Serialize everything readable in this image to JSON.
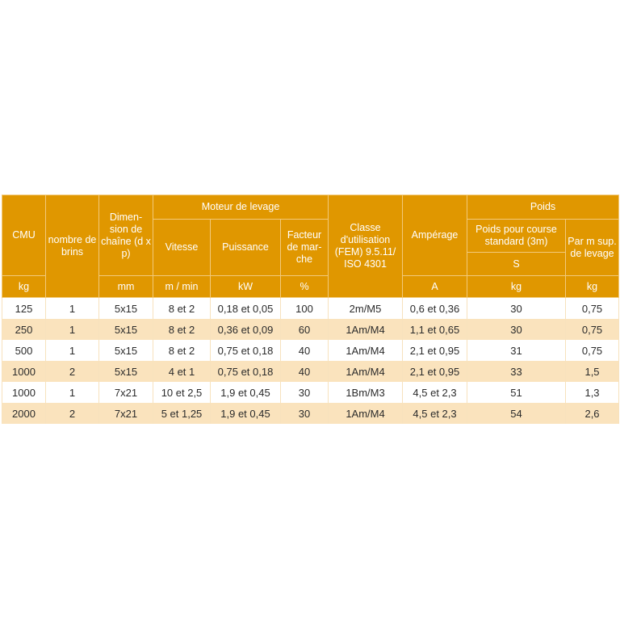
{
  "header": {
    "cmu": "CMU",
    "nombre_brins": "nombre de brins",
    "dimension": "Dimen-sion de chaîne (d x p)",
    "moteur": "Moteur de levage",
    "vitesse": "Vitesse",
    "puissance": "Puissance",
    "facteur": "Facteur de mar-che",
    "classe": "Classe d'utilisation (FEM) 9.5.11/ ISO 4301",
    "amperage": "Ampérage",
    "poids": "Poids",
    "poids_course": "Poids pour course standard (3m)",
    "poids_s": "S",
    "par_m": "Par m sup. de levage"
  },
  "units": {
    "cmu": "kg",
    "dimension": "mm",
    "vitesse": "m / min",
    "puissance": "kW",
    "facteur": "%",
    "amperage": "A",
    "poids_course": "kg",
    "par_m": "kg"
  },
  "rows": [
    [
      "125",
      "1",
      "5x15",
      "8 et 2",
      "0,18 et 0,05",
      "100",
      "2m/M5",
      "0,6 et 0,36",
      "30",
      "0,75"
    ],
    [
      "250",
      "1",
      "5x15",
      "8 et 2",
      "0,36 et 0,09",
      "60",
      "1Am/M4",
      "1,1 et 0,65",
      "30",
      "0,75"
    ],
    [
      "500",
      "1",
      "5x15",
      "8 et 2",
      "0,75 et 0,18",
      "40",
      "1Am/M4",
      "2,1 et 0,95",
      "31",
      "0,75"
    ],
    [
      "1000",
      "2",
      "5x15",
      "4 et 1",
      "0,75 et 0,18",
      "40",
      "1Am/M4",
      "2,1 et 0,95",
      "33",
      "1,5"
    ],
    [
      "1000",
      "1",
      "7x21",
      "10 et 2,5",
      "1,9 et 0,45",
      "30",
      "1Bm/M3",
      "4,5 et 2,3",
      "51",
      "1,3"
    ],
    [
      "2000",
      "2",
      "7x21",
      "5 et 1,25",
      "1,9 et 0,45",
      "30",
      "1Am/M4",
      "4,5 et 2,3",
      "54",
      "2,6"
    ]
  ],
  "colors": {
    "header_bg": "#e09700",
    "stripe_bg": "#fae3bd",
    "header_text": "#ffffff"
  }
}
